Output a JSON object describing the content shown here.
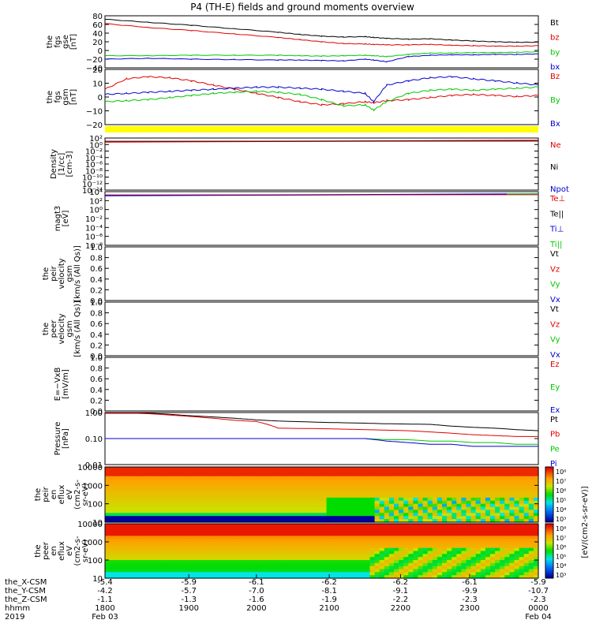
{
  "title": "P4 (TH-E) fields and ground moments overview",
  "colors": {
    "black": "#000000",
    "red": "#e00000",
    "green": "#00c800",
    "blue": "#0000d0",
    "yellow": "#ffff00"
  },
  "chart_data": [
    {
      "id": "panel1",
      "type": "line",
      "ylabel": [
        "the",
        "fgs",
        "gse",
        "[nT]"
      ],
      "yticks": [
        "80",
        "60",
        "40",
        "20",
        "0",
        "−20",
        "−40"
      ],
      "ylim": [
        -40,
        80
      ],
      "legend": [
        {
          "label": "Bt",
          "color": "black"
        },
        {
          "label": "bz",
          "color": "red"
        },
        {
          "label": "by",
          "color": "green"
        },
        {
          "label": "bx",
          "color": "blue"
        }
      ],
      "x": [
        0,
        0.1,
        0.2,
        0.3,
        0.4,
        0.45,
        0.5,
        0.55,
        0.6,
        0.62,
        0.65,
        0.7,
        0.75,
        0.8,
        0.85,
        0.9,
        0.95,
        1.0
      ],
      "series": [
        {
          "color": "black",
          "values": [
            72,
            65,
            58,
            50,
            42,
            37,
            33,
            31,
            32,
            30,
            28,
            26,
            27,
            24,
            22,
            20,
            19,
            19
          ]
        },
        {
          "color": "red",
          "values": [
            62,
            53,
            46,
            38,
            30,
            25,
            20,
            16,
            15,
            14,
            13,
            13,
            14,
            12,
            11,
            10,
            10,
            11
          ]
        },
        {
          "color": "green",
          "values": [
            -12,
            -12,
            -11,
            -11,
            -11,
            -12,
            -13,
            -12,
            -11,
            -12,
            -14,
            -9,
            -6,
            -6,
            -5,
            -5,
            -4,
            -3
          ]
        },
        {
          "color": "blue",
          "values": [
            -20,
            -18,
            -20,
            -21,
            -22,
            -22,
            -23,
            -24,
            -20,
            -22,
            -26,
            -14,
            -11,
            -10,
            -10,
            -9,
            -9,
            -8
          ]
        }
      ]
    },
    {
      "id": "panel2",
      "type": "line",
      "ylabel": [
        "the",
        "fgs",
        "gsm",
        "[nT]"
      ],
      "yticks": [
        "20",
        "10",
        "0",
        "−10",
        "−20"
      ],
      "ylim": [
        -28,
        25
      ],
      "legend": [
        {
          "label": "Bz",
          "color": "red"
        },
        {
          "label": "By",
          "color": "green"
        },
        {
          "label": "Bx",
          "color": "blue"
        }
      ],
      "x": [
        0,
        0.05,
        0.1,
        0.15,
        0.2,
        0.25,
        0.3,
        0.35,
        0.4,
        0.45,
        0.5,
        0.55,
        0.6,
        0.62,
        0.65,
        0.7,
        0.75,
        0.8,
        0.85,
        0.9,
        0.95,
        1.0
      ],
      "series": [
        {
          "color": "red",
          "values": [
            6,
            16,
            18,
            17,
            14,
            10,
            6,
            2,
            -2,
            -6,
            -9,
            -8,
            -6,
            -7,
            -5,
            -4,
            -2,
            0,
            1,
            0,
            -1,
            0
          ]
        },
        {
          "color": "green",
          "values": [
            -6,
            -5,
            -4,
            -2,
            0,
            2,
            3,
            4,
            3,
            1,
            -4,
            -10,
            -9,
            -14,
            -6,
            2,
            5,
            6,
            5,
            6,
            7,
            8
          ]
        },
        {
          "color": "blue",
          "values": [
            1,
            2,
            3,
            4,
            5,
            6,
            7,
            8,
            8,
            7,
            6,
            4,
            2,
            -6,
            10,
            14,
            17,
            18,
            16,
            14,
            12,
            10
          ]
        }
      ]
    },
    {
      "id": "panel3",
      "type": "line",
      "ylabel": [
        "Density",
        "[1/cc]",
        "[cm-3]"
      ],
      "yticks": [
        "10²",
        "10⁰",
        "10⁻²",
        "10⁻⁴",
        "10⁻⁶",
        "10⁻⁸",
        "10⁻¹⁰",
        "10⁻¹²",
        "10⁻¹⁴"
      ],
      "legend": [
        {
          "label": "Ne",
          "color": "red"
        },
        {
          "label": "Ni",
          "color": "black"
        },
        {
          "label": "Npot",
          "color": "blue"
        }
      ],
      "note": "single line near top (~10¹)"
    },
    {
      "id": "panel4",
      "type": "line",
      "ylabel": [
        "magt3",
        "[eV]"
      ],
      "yticks": [
        "10⁴",
        "10²",
        "10⁰",
        "10⁻²",
        "10⁻⁴",
        "10⁻⁶",
        "10⁻⁸"
      ],
      "legend": [
        {
          "label": "Te⊥",
          "color": "red"
        },
        {
          "label": "Te||",
          "color": "black"
        },
        {
          "label": "Ti⊥",
          "color": "blue"
        },
        {
          "label": "Ti||",
          "color": "green"
        }
      ],
      "note": "lines near top (~10³)"
    },
    {
      "id": "panel5",
      "type": "line",
      "ylabel": [
        "the",
        "peir",
        "velocity",
        "gsm",
        "[km/s (All Qs)]"
      ],
      "yticks": [
        "1.0",
        "0.8",
        "0.6",
        "0.4",
        "0.2",
        "0.0"
      ],
      "legend": [
        {
          "label": "Vt",
          "color": "black"
        },
        {
          "label": "Vz",
          "color": "red"
        },
        {
          "label": "Vy",
          "color": "green"
        },
        {
          "label": "Vx",
          "color": "blue"
        }
      ]
    },
    {
      "id": "panel6",
      "type": "line",
      "ylabel": [
        "the",
        "peer",
        "velocity",
        "gsm",
        "[km/s (All Qs)]"
      ],
      "yticks": [
        "1.0",
        "0.8",
        "0.6",
        "0.4",
        "0.2",
        "0.0"
      ],
      "legend": [
        {
          "label": "Vt",
          "color": "black"
        },
        {
          "label": "Vz",
          "color": "red"
        },
        {
          "label": "Vy",
          "color": "green"
        },
        {
          "label": "Vx",
          "color": "blue"
        }
      ]
    },
    {
      "id": "panel7",
      "type": "line",
      "ylabel": [
        "E=−VxB",
        "[mV/m]"
      ],
      "yticks": [
        "1.0",
        "0.8",
        "0.6",
        "0.4",
        "0.2",
        "0.0"
      ],
      "legend": [
        {
          "label": "Ez",
          "color": "red"
        },
        {
          "label": "Ey",
          "color": "green"
        },
        {
          "label": "Ex",
          "color": "blue"
        }
      ]
    },
    {
      "id": "panel8",
      "type": "line",
      "ylabel": [
        "Pressure",
        "[nPa]"
      ],
      "yticks": [
        "1.00",
        "0.10",
        "0.01"
      ],
      "legend": [
        {
          "label": "Pt",
          "color": "black"
        },
        {
          "label": "Pb",
          "color": "red"
        },
        {
          "label": "Pe",
          "color": "green"
        },
        {
          "label": "Pi",
          "color": "blue"
        }
      ],
      "x": [
        0,
        0.1,
        0.2,
        0.3,
        0.35,
        0.4,
        0.5,
        0.6,
        0.65,
        0.7,
        0.75,
        0.8,
        0.85,
        0.9,
        0.95,
        1.0
      ],
      "series": [
        {
          "color": "black",
          "values": [
            1.1,
            0.95,
            0.75,
            0.6,
            0.52,
            0.47,
            0.42,
            0.39,
            0.37,
            0.36,
            0.35,
            0.3,
            0.27,
            0.25,
            0.22,
            0.2
          ]
        },
        {
          "color": "red",
          "values": [
            1.05,
            0.9,
            0.7,
            0.5,
            0.45,
            0.25,
            0.24,
            0.22,
            0.21,
            0.2,
            0.18,
            0.16,
            0.14,
            0.13,
            0.12,
            0.12
          ]
        },
        {
          "color": "green",
          "values": [
            0.1,
            0.1,
            0.1,
            0.1,
            0.1,
            0.1,
            0.1,
            0.1,
            0.09,
            0.09,
            0.08,
            0.08,
            0.07,
            0.07,
            0.06,
            0.06
          ]
        },
        {
          "color": "blue",
          "values": [
            0.1,
            0.1,
            0.1,
            0.1,
            0.1,
            0.1,
            0.1,
            0.1,
            0.08,
            0.07,
            0.06,
            0.06,
            0.05,
            0.05,
            0.05,
            0.05
          ]
        }
      ]
    },
    {
      "id": "panel9",
      "type": "heatmap",
      "ylabel": [
        "the",
        "peir",
        "en",
        "eflux",
        "eV",
        "(cm2-s-",
        "sr-eV)"
      ],
      "yticks": [
        "10000",
        "1000",
        "100",
        "10"
      ],
      "colorbar_label": "[eV/(cm2-s-sr-eV)]",
      "colorbar_ticks": [
        "10⁸",
        "10⁷",
        "10⁶",
        "10⁵",
        "10⁴",
        "10³"
      ]
    },
    {
      "id": "panel10",
      "type": "heatmap",
      "ylabel": [
        "the",
        "peer",
        "en",
        "eflux",
        "eV",
        "(cm2-s-",
        "sr-eV)"
      ],
      "yticks": [
        "10000",
        "1000",
        "100",
        "10"
      ],
      "colorbar_label": "[eV/(cm2-s-sr-eV)]",
      "colorbar_ticks": [
        "10⁸",
        "10⁷",
        "10⁶",
        "10⁵",
        "10⁴",
        "10³"
      ]
    }
  ],
  "xaxis": {
    "rows": [
      {
        "label": "the_X-CSM",
        "values": [
          "-5.4",
          "-5.9",
          "-6.1",
          "-6.2",
          "-6.2",
          "-6.1",
          "-5.9"
        ]
      },
      {
        "label": "the_Y-CSM",
        "values": [
          "-4.2",
          "-5.7",
          "-7.0",
          "-8.1",
          "-9.1",
          "-9.9",
          "-10.7"
        ]
      },
      {
        "label": "the_Z-CSM",
        "values": [
          "-1.1",
          "-1.3",
          "-1.6",
          "-1.9",
          "-2.2",
          "-2.3",
          "-2.3"
        ]
      },
      {
        "label": "hhmm",
        "values": [
          "1800",
          "1900",
          "2000",
          "2100",
          "2200",
          "2300",
          "0000"
        ]
      }
    ],
    "year": "2019",
    "start_date": "Feb 03",
    "end_date": "Feb 04"
  }
}
